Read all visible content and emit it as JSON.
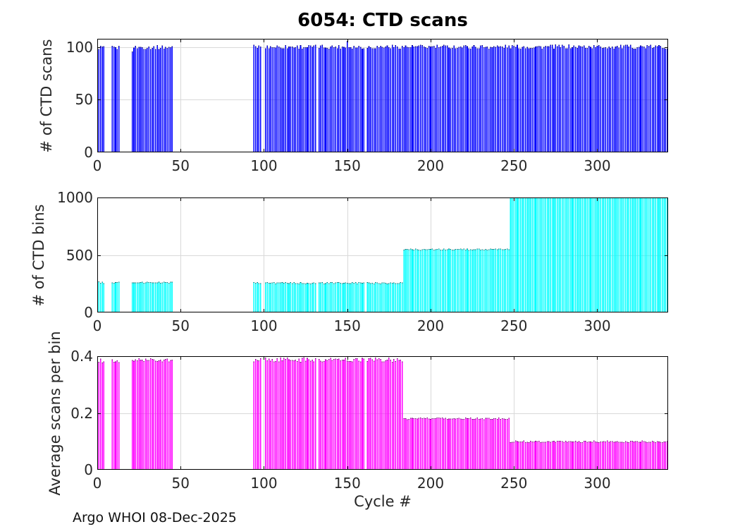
{
  "figure": {
    "title": "6054: CTD scans",
    "xlabel": "Cycle #",
    "footer": "Argo WHOI 08-Dec-2025",
    "background_color": "#ffffff",
    "axis_color": "#000000",
    "tick_text_color": "#262626",
    "grid_color": "#d9d9d9"
  },
  "chart_data": [
    {
      "type": "bar",
      "name": "ctd-scans",
      "title": "6054: CTD scans",
      "ylabel": "# of CTD scans",
      "bar_color": "#0000ff",
      "ylim": [
        0,
        108
      ],
      "yticks": [
        0,
        50,
        100
      ],
      "ytick_labels": [
        "0",
        "50",
        "100"
      ],
      "xlim": [
        0,
        342.5
      ],
      "xticks": [
        0,
        50,
        100,
        150,
        200,
        250,
        300
      ],
      "xtick_labels": [
        "0",
        "50",
        "100",
        "150",
        "200",
        "250",
        "300"
      ],
      "grid": true,
      "segments": [
        {
          "from": 1,
          "to": 4,
          "value": 100,
          "jitter": 2
        },
        {
          "from": 9,
          "to": 13,
          "value": 99.5,
          "jitter": 2
        },
        {
          "from": 21,
          "to": 45,
          "value": 100,
          "jitter": 2
        },
        {
          "from": 94,
          "to": 342,
          "value": 100.5,
          "jitter": 2
        }
      ],
      "overrides": {
        "21": 96,
        "150": 106
      },
      "missing_cycles": [
        99,
        100,
        132,
        161
      ]
    },
    {
      "type": "bar",
      "name": "ctd-bins",
      "ylabel": "# of CTD bins",
      "bar_color": "#00ffff",
      "ylim": [
        0,
        1000
      ],
      "yticks": [
        0,
        500,
        1000
      ],
      "ytick_labels": [
        "0",
        "500",
        "1000"
      ],
      "xlim": [
        0,
        342.5
      ],
      "xticks": [
        0,
        50,
        100,
        150,
        200,
        250,
        300
      ],
      "xtick_labels": [
        "0",
        "50",
        "100",
        "150",
        "200",
        "250",
        "300"
      ],
      "grid": true,
      "segments": [
        {
          "from": 1,
          "to": 4,
          "value": 262,
          "jitter": 7
        },
        {
          "from": 9,
          "to": 13,
          "value": 262,
          "jitter": 7
        },
        {
          "from": 21,
          "to": 45,
          "value": 263,
          "jitter": 6
        },
        {
          "from": 94,
          "to": 183,
          "value": 258,
          "jitter": 7
        },
        {
          "from": 184,
          "to": 247,
          "value": 550,
          "jitter": 6
        },
        {
          "from": 248,
          "to": 342,
          "value": 1000,
          "jitter": 0
        }
      ],
      "overrides": {},
      "missing_cycles": [
        99,
        100,
        132,
        161
      ]
    },
    {
      "type": "bar",
      "name": "avg-scans-per-bin",
      "ylabel": "Average scans per bin",
      "bar_color": "#ff00ff",
      "ylim": [
        0,
        0.4
      ],
      "yticks": [
        0,
        0.2,
        0.4
      ],
      "ytick_labels": [
        "0",
        "0.2",
        "0.4"
      ],
      "xlim": [
        0,
        342.5
      ],
      "xticks": [
        0,
        50,
        100,
        150,
        200,
        250,
        300
      ],
      "xtick_labels": [
        "0",
        "50",
        "100",
        "150",
        "200",
        "250",
        "300"
      ],
      "grid": true,
      "segments": [
        {
          "from": 1,
          "to": 4,
          "value": 0.383,
          "jitter": 0.01
        },
        {
          "from": 9,
          "to": 13,
          "value": 0.383,
          "jitter": 0.008
        },
        {
          "from": 21,
          "to": 45,
          "value": 0.387,
          "jitter": 0.006
        },
        {
          "from": 94,
          "to": 183,
          "value": 0.388,
          "jitter": 0.008
        },
        {
          "from": 184,
          "to": 247,
          "value": 0.181,
          "jitter": 0.003
        },
        {
          "from": 248,
          "to": 342,
          "value": 0.1,
          "jitter": 0.003
        }
      ],
      "overrides": {},
      "missing_cycles": [
        99,
        100,
        132,
        161
      ]
    }
  ]
}
